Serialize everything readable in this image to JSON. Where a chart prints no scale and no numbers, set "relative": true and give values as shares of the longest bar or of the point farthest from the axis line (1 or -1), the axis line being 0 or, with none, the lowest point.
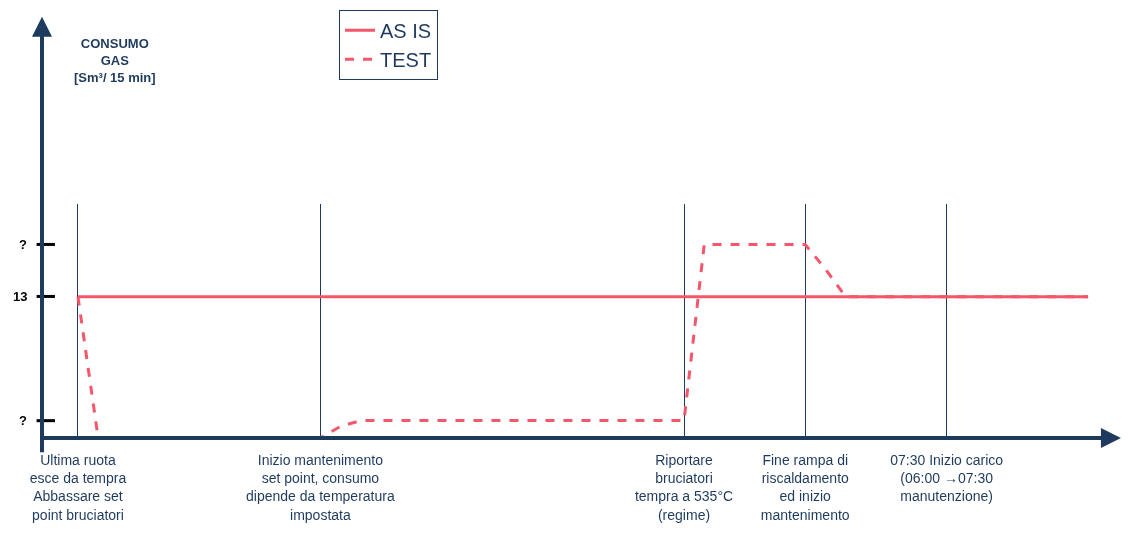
{
  "chart_data": {
    "type": "line",
    "relative": true,
    "tick_labels": "x",
    "grid": "x",
    "legend": "top",
    "marker": "none",
    "categories": [
      "Ultima ruota\nesce da tempra\nAbbassare set\npoint bruciatori",
      null,
      null,
      null,
      null,
      null,
      null,
      null,
      null,
      null,
      null,
      null,
      "Inizio mantenimento\nset point, consumo\ndipende da temperatura\nimpostata",
      null,
      null,
      null,
      null,
      null,
      null,
      null,
      null,
      null,
      null,
      null,
      null,
      null,
      null,
      null,
      null,
      null,
      "Riportare\nbruciatori\ntempra a 535°C\n(regime)",
      null,
      null,
      null,
      null,
      null,
      "Fine rampa di\nriscaldamento\ned inizio\nmantenimento",
      null,
      null,
      null,
      null,
      null,
      null,
      "07:30 Inizio carico\n(06:00 →07:30\nmanutenzione)",
      null,
      null,
      null,
      null,
      null,
      null,
      null
    ],
    "series": [
      {
        "name": "AS IS",
        "color": "#f4566a",
        "line_style": "solid",
        "values": [
          0.731,
          0.731,
          0.731,
          0.731,
          0.731,
          0.731,
          0.731,
          0.731,
          0.731,
          0.731,
          0.731,
          0.731,
          0.731,
          0.731,
          0.731,
          0.731,
          0.731,
          0.731,
          0.731,
          0.731,
          0.731,
          0.731,
          0.731,
          0.731,
          0.731,
          0.731,
          0.731,
          0.731,
          0.731,
          0.731,
          0.731,
          0.731,
          0.731,
          0.731,
          0.731,
          0.731,
          0.731,
          0.731,
          0.731,
          0.731,
          0.731,
          0.731,
          0.731,
          0.731,
          0.731,
          0.731,
          0.731,
          0.731,
          0.731,
          0.731,
          0.731
        ]
      },
      {
        "name": "TEST",
        "color": "#f4566a",
        "line_style": "dashed",
        "values": [
          0.731,
          0,
          0,
          0,
          0,
          0,
          0,
          0,
          0,
          0,
          0,
          0,
          0,
          0.06,
          0.09,
          0.09,
          0.09,
          0.09,
          0.09,
          0.09,
          0.09,
          0.09,
          0.09,
          0.09,
          0.09,
          0.09,
          0.09,
          0.09,
          0.09,
          0.09,
          0.09,
          1,
          1,
          1,
          1,
          1,
          1,
          0.874,
          0.731,
          0.731,
          0.731,
          0.731,
          0.731,
          0.731,
          0.731,
          0.731,
          0.731,
          0.731,
          0.731,
          0.731,
          0.731
        ]
      }
    ],
    "annotations": [
      "?",
      "13",
      "?",
      "CONSUMO\nGAS\n[Sm³/ 15 min]"
    ]
  }
}
